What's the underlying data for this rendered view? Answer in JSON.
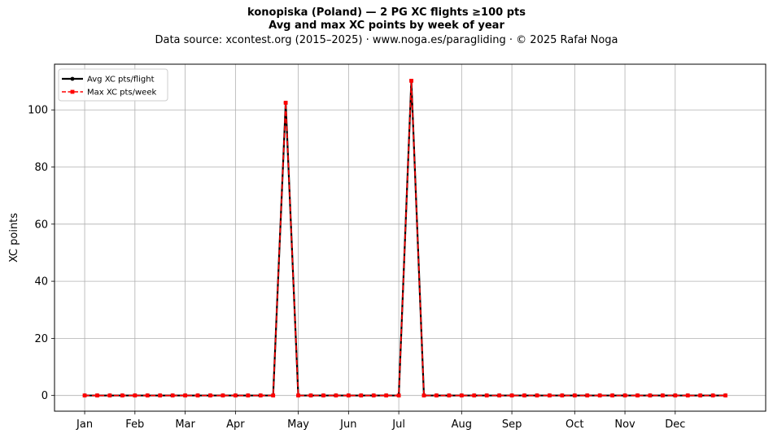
{
  "chart_data": {
    "type": "line",
    "title": "konopiska (Poland)  —  2 PG XC flights ≥100 pts",
    "subtitle": "Avg and max XC points by week of year",
    "source": "Data source: xcontest.org (2015–2025)  ·  www.noga.es/paragliding  ·  © 2025 Rafał Noga",
    "xlabel": "",
    "ylabel": "XC points",
    "x_ticks": [
      {
        "label": "Jan",
        "week": 1
      },
      {
        "label": "Feb",
        "week": 5
      },
      {
        "label": "Mar",
        "week": 9
      },
      {
        "label": "Apr",
        "week": 13
      },
      {
        "label": "May",
        "week": 18
      },
      {
        "label": "Jun",
        "week": 22
      },
      {
        "label": "Jul",
        "week": 26
      },
      {
        "label": "Aug",
        "week": 31
      },
      {
        "label": "Sep",
        "week": 35
      },
      {
        "label": "Oct",
        "week": 40
      },
      {
        "label": "Nov",
        "week": 44
      },
      {
        "label": "Dec",
        "week": 48
      }
    ],
    "xlim": [
      -1.4,
      55.2
    ],
    "ylim": [
      -5.5,
      116
    ],
    "y_ticks": [
      0,
      20,
      40,
      60,
      80,
      100
    ],
    "grid": true,
    "legend_position": "top-left",
    "weeks": [
      1,
      2,
      3,
      4,
      5,
      6,
      7,
      8,
      9,
      10,
      11,
      12,
      13,
      14,
      15,
      16,
      17,
      18,
      19,
      20,
      21,
      22,
      23,
      24,
      25,
      26,
      27,
      28,
      29,
      30,
      31,
      32,
      33,
      34,
      35,
      36,
      37,
      38,
      39,
      40,
      41,
      42,
      43,
      44,
      45,
      46,
      47,
      48,
      49,
      50,
      51,
      52
    ],
    "series": [
      {
        "name": "Avg XC pts/flight",
        "color": "#000000",
        "marker": "circle",
        "line": "solid",
        "values": [
          0,
          0,
          0,
          0,
          0,
          0,
          0,
          0,
          0,
          0,
          0,
          0,
          0,
          0,
          0,
          0,
          102.5,
          0,
          0,
          0,
          0,
          0,
          0,
          0,
          0,
          0,
          110.2,
          0,
          0,
          0,
          0,
          0,
          0,
          0,
          0,
          0,
          0,
          0,
          0,
          0,
          0,
          0,
          0,
          0,
          0,
          0,
          0,
          0,
          0,
          0,
          0,
          0
        ]
      },
      {
        "name": "Max XC pts/week",
        "color": "#ff0000",
        "marker": "square",
        "line": "dashed",
        "values": [
          0,
          0,
          0,
          0,
          0,
          0,
          0,
          0,
          0,
          0,
          0,
          0,
          0,
          0,
          0,
          0,
          102.5,
          0,
          0,
          0,
          0,
          0,
          0,
          0,
          0,
          0,
          110.2,
          0,
          0,
          0,
          0,
          0,
          0,
          0,
          0,
          0,
          0,
          0,
          0,
          0,
          0,
          0,
          0,
          0,
          0,
          0,
          0,
          0,
          0,
          0,
          0,
          0
        ]
      }
    ]
  }
}
